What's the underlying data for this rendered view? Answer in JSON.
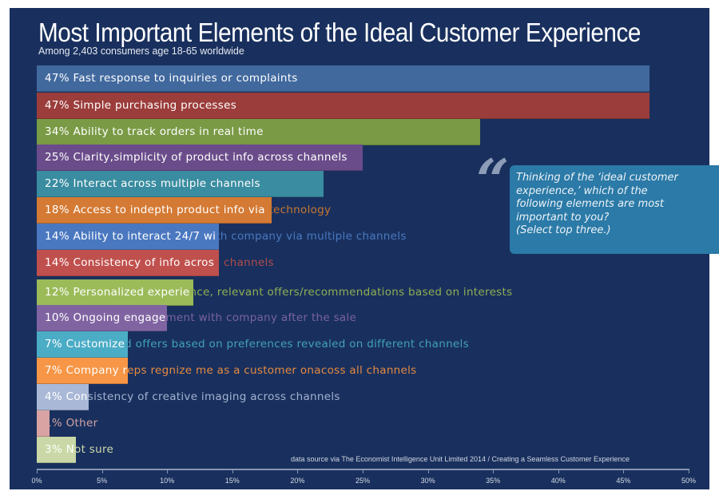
{
  "chart_data": {
    "type": "bar",
    "orientation": "horizontal",
    "title": "Most Important Elements of the Ideal Customer Experience",
    "subtitle": "Among 2,403 consumers age 18-65 worldwide",
    "xlim": [
      0,
      50
    ],
    "ticks": [
      "0%",
      "5%",
      "10%",
      "15%",
      "20%",
      "25%",
      "30%",
      "35%",
      "40%",
      "45%",
      "50%"
    ],
    "grid": false,
    "bars": [
      {
        "value": 47,
        "label": "47% Fast response to inquiries or complaints",
        "color": "#41699e",
        "text_color": "#41699e"
      },
      {
        "value": 47,
        "label": "47% Simple purchasing processes",
        "color": "#9b3d3b",
        "text_color": "#9b3d3b"
      },
      {
        "value": 34,
        "label": "34% Ability to track orders in real time",
        "color": "#7a9a45",
        "text_color": "#7a9a45"
      },
      {
        "value": 25,
        "label": "25% Clarity,simplicity of product info across channels",
        "color": "#6a4c8a",
        "text_color": "#6a4c8a"
      },
      {
        "value": 22,
        "label": "22% Interact across multiple channels",
        "color": "#3a8ca0",
        "text_color": "#3a8ca0"
      },
      {
        "value": 18,
        "label": "18% Access to indepth product info via  technology",
        "color": "#d47a34",
        "text_color": "#c9762f"
      },
      {
        "value": 14,
        "label": "14% Ability to interact 24/7 with company via multiple channels",
        "color": "#4a78c0",
        "text_color": "#4a78c0"
      },
      {
        "value": 14,
        "label": "14% Consistency of info across channels",
        "color": "#c0504d",
        "text_color": "#b04b49"
      },
      {
        "value": 12,
        "label": "12% Personalized experience, relevant offers/recommendations based on interests",
        "color": "#9bbb59",
        "text_color": "#8fae52"
      },
      {
        "value": 10,
        "label": "10% Ongoing engagement with company after the sale",
        "color": "#8064a2",
        "text_color": "#7a61a0"
      },
      {
        "value": 7,
        "label": "7% Customized offers based on preferences revealed on different channels",
        "color": "#4bacc6",
        "text_color": "#42a0bb"
      },
      {
        "value": 7,
        "label": "7% Company reps regnize me as a customer onacoss all channels",
        "color": "#f79646",
        "text_color": "#e58a40"
      },
      {
        "value": 4,
        "label": "4% Consistency of creative imaging across channels",
        "color": "#a9b8d6",
        "text_color": "#a3b1cf"
      },
      {
        "value": 1,
        "label": "1% Other",
        "color": "#d9a3a3",
        "text_color": "#d3a5a5"
      },
      {
        "value": 3,
        "label": "3% Not sure",
        "color": "#c9d8a6",
        "text_color": "#cfdca8"
      }
    ]
  },
  "callout": {
    "quote_mark": "“",
    "text": "Thinking of the ‘ideal customer\nexperience,’ which of the\nfollowing elements are most\nimportant to you?\n(Select top three.)",
    "color": "#2b7aa7"
  },
  "source": "data source via The Economist Intelligence Unit Limited 2014 / Creating a Seamless Customer Experience"
}
